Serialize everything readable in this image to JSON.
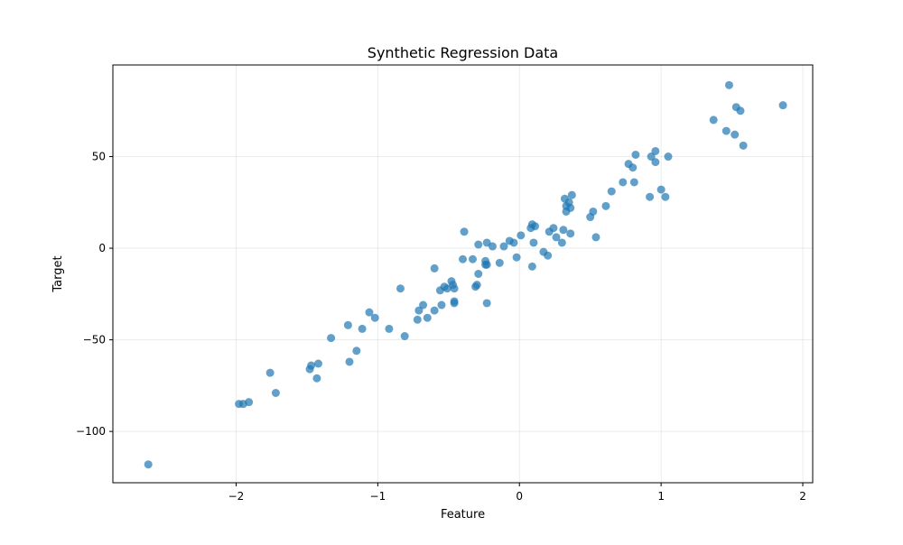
{
  "chart_data": {
    "type": "scatter",
    "title": "Synthetic Regression Data",
    "xlabel": "Feature",
    "ylabel": "Target",
    "xlim": [
      -2.87,
      2.07
    ],
    "ylim": [
      -128,
      100
    ],
    "x_ticks": [
      -2,
      -1,
      0,
      1,
      2
    ],
    "x_tick_labels": [
      "−2",
      "−1",
      "0",
      "1",
      "2"
    ],
    "y_ticks": [
      -100,
      -50,
      0,
      50
    ],
    "y_tick_labels": [
      "−100",
      "−50",
      "0",
      "50"
    ],
    "grid": true,
    "marker_color": "#1f77b4",
    "marker_alpha": 0.7,
    "points": [
      [
        -2.62,
        -118
      ],
      [
        -1.98,
        -85
      ],
      [
        -1.95,
        -85
      ],
      [
        -1.91,
        -84
      ],
      [
        -1.76,
        -68
      ],
      [
        -1.72,
        -79
      ],
      [
        -1.48,
        -66
      ],
      [
        -1.47,
        -64
      ],
      [
        -1.43,
        -71
      ],
      [
        -1.42,
        -63
      ],
      [
        -1.33,
        -49
      ],
      [
        -1.21,
        -42
      ],
      [
        -1.2,
        -62
      ],
      [
        -1.15,
        -56
      ],
      [
        -1.11,
        -44
      ],
      [
        -1.06,
        -35
      ],
      [
        -1.02,
        -38
      ],
      [
        -0.92,
        -44
      ],
      [
        -0.84,
        -22
      ],
      [
        -0.81,
        -48
      ],
      [
        -0.72,
        -39
      ],
      [
        -0.71,
        -34
      ],
      [
        -0.68,
        -31
      ],
      [
        -0.65,
        -38
      ],
      [
        -0.6,
        -11
      ],
      [
        -0.6,
        -34
      ],
      [
        -0.56,
        -23
      ],
      [
        -0.55,
        -31
      ],
      [
        -0.53,
        -21
      ],
      [
        -0.51,
        -22
      ],
      [
        -0.48,
        -18
      ],
      [
        -0.47,
        -20
      ],
      [
        -0.46,
        -22
      ],
      [
        -0.46,
        -29
      ],
      [
        -0.46,
        -30
      ],
      [
        -0.4,
        -6
      ],
      [
        -0.39,
        9
      ],
      [
        -0.33,
        -6
      ],
      [
        -0.31,
        -21
      ],
      [
        -0.3,
        -20
      ],
      [
        -0.29,
        -14
      ],
      [
        -0.29,
        2
      ],
      [
        -0.24,
        -7
      ],
      [
        -0.24,
        -9
      ],
      [
        -0.23,
        -30
      ],
      [
        -0.23,
        -9
      ],
      [
        -0.23,
        3
      ],
      [
        -0.19,
        1
      ],
      [
        -0.14,
        -8
      ],
      [
        -0.11,
        1
      ],
      [
        -0.07,
        4
      ],
      [
        -0.04,
        3
      ],
      [
        -0.02,
        -5
      ],
      [
        0.01,
        7
      ],
      [
        0.08,
        11
      ],
      [
        0.09,
        13
      ],
      [
        0.09,
        -10
      ],
      [
        0.1,
        3
      ],
      [
        0.11,
        12
      ],
      [
        0.17,
        -2
      ],
      [
        0.2,
        -4
      ],
      [
        0.21,
        9
      ],
      [
        0.24,
        11
      ],
      [
        0.26,
        6
      ],
      [
        0.3,
        3
      ],
      [
        0.31,
        10
      ],
      [
        0.32,
        27
      ],
      [
        0.33,
        20
      ],
      [
        0.33,
        23
      ],
      [
        0.35,
        25
      ],
      [
        0.36,
        8
      ],
      [
        0.36,
        22
      ],
      [
        0.37,
        29
      ],
      [
        0.5,
        17
      ],
      [
        0.52,
        20
      ],
      [
        0.54,
        6
      ],
      [
        0.61,
        23
      ],
      [
        0.65,
        31
      ],
      [
        0.73,
        36
      ],
      [
        0.77,
        46
      ],
      [
        0.8,
        44
      ],
      [
        0.81,
        36
      ],
      [
        0.82,
        51
      ],
      [
        0.92,
        28
      ],
      [
        0.93,
        50
      ],
      [
        0.96,
        53
      ],
      [
        0.96,
        47
      ],
      [
        1.0,
        32
      ],
      [
        1.03,
        28
      ],
      [
        1.05,
        50
      ],
      [
        1.37,
        70
      ],
      [
        1.46,
        64
      ],
      [
        1.48,
        89
      ],
      [
        1.52,
        62
      ],
      [
        1.53,
        77
      ],
      [
        1.56,
        75
      ],
      [
        1.58,
        56
      ],
      [
        1.86,
        78
      ]
    ]
  }
}
